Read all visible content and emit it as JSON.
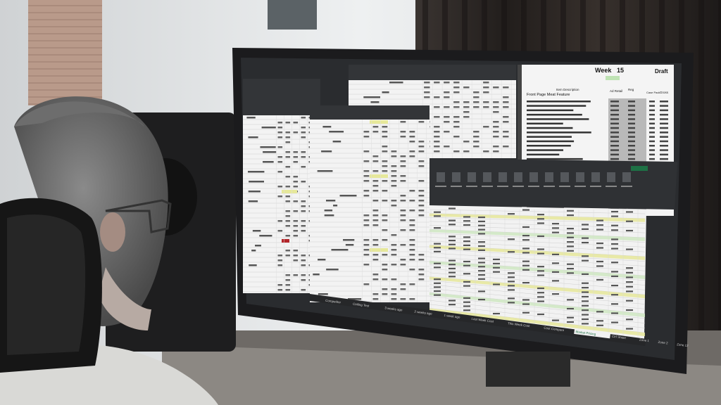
{
  "scene": {
    "description_colors": {
      "wall": "#e6e8e9",
      "curtain": "#2b2624",
      "bezel": "#1c1c1e",
      "sheet": "#f4f4f4",
      "highlight_yellow": "#e6e89a",
      "highlight_green": "#cfe8c2",
      "excel_green": "#1e7145"
    }
  },
  "price_sheet": {
    "week_label": "Week",
    "week_number": "15",
    "status": "Draft",
    "section_title": "Front Page Meat Feature",
    "columns": [
      "Item Description",
      "Ad Retail",
      "Reg",
      "Case Pack",
      "Gross"
    ]
  },
  "workbook": {
    "sheet_tabs": [
      "Competitor",
      "Ceiling Test",
      "3 weeks ago",
      "2 weeks ago",
      "1 week ago",
      "Last Week Cost",
      "This Week Cost",
      "Cost Compare",
      "Market Pricing",
      "Ctrl Sheet",
      "Zone 1",
      "Zone 2",
      "Zone 12"
    ],
    "active_tab": "Market Pricing"
  }
}
